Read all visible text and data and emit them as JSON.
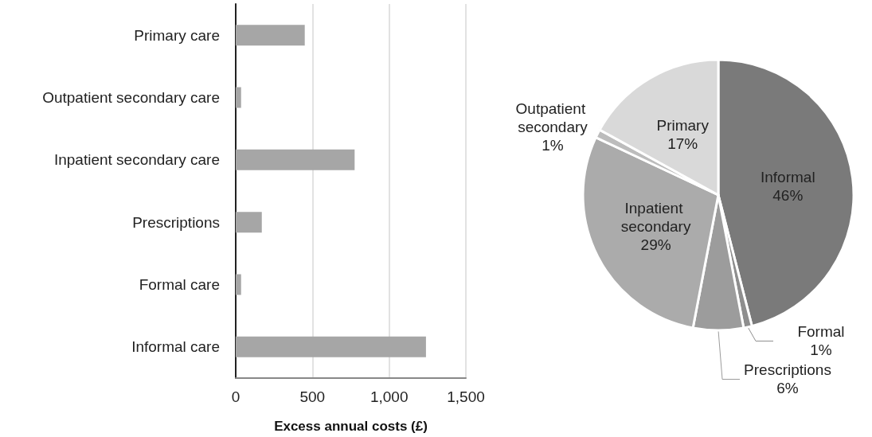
{
  "chart_data": [
    {
      "type": "bar",
      "orientation": "horizontal",
      "xlabel": "Excess annual costs (£)",
      "categories": [
        "Primary care",
        "Outpatient secondary care",
        "Inpatient secondary care",
        "Prescriptions",
        "Formal care",
        "Informal care"
      ],
      "values": [
        450,
        35,
        775,
        170,
        35,
        1240
      ],
      "color": "#a6a6a6",
      "xlim": [
        0,
        1500
      ],
      "xticks": [
        0,
        500,
        {
          "value": 1000,
          "label": "1,000"
        },
        {
          "value": 1500,
          "label": "1,500"
        }
      ],
      "grid": "x"
    },
    {
      "type": "pie",
      "categories": [
        "Informal",
        "Formal",
        "Prescriptions",
        "Inpatient secondary",
        "Outpatient secondary",
        "Primary"
      ],
      "values": [
        46,
        1,
        6,
        29,
        1,
        17
      ],
      "value_labels": [
        "46%",
        "1%",
        "6%",
        "29%",
        "1%",
        "17%"
      ],
      "colors": [
        "#7a7a7a",
        "#8e8e8e",
        "#9c9c9c",
        "#ababab",
        "#bcbcbc",
        "#d9d9d9"
      ],
      "data_labels": true
    }
  ]
}
